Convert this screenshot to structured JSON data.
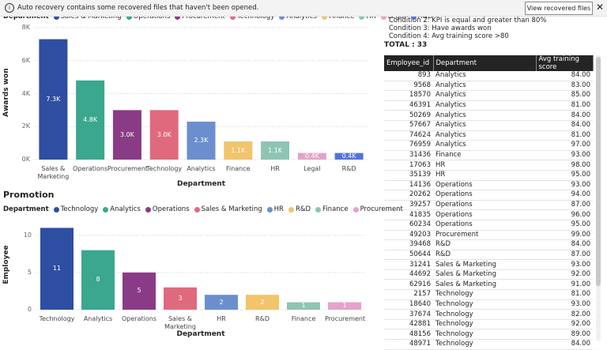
{
  "notification": {
    "message": "Auto recovery contains some recovered files that haven't been opened.",
    "button": "View recovered files"
  },
  "chart_data": [
    {
      "type": "bar",
      "legend_title": "Department",
      "y_label": "Awards won",
      "x_label": "Department",
      "categories": [
        "Sales & Marketing",
        "Operations",
        "Procurement",
        "Technology",
        "Analytics",
        "Finance",
        "HR",
        "Legal",
        "R&D"
      ],
      "values": [
        7300,
        4800,
        3000,
        3000,
        2300,
        1100,
        1100,
        400,
        400
      ],
      "value_labels": [
        "7.3K",
        "4.8K",
        "3.0K",
        "3.0K",
        "2.3K",
        "1.1K",
        "1.1K",
        "0.4K",
        "0.4K"
      ],
      "colors": [
        "#2e4ea2",
        "#3aa78e",
        "#8a3b86",
        "#df6a7e",
        "#6b8fce",
        "#f2c46b",
        "#8fc4b4",
        "#e6a2ca",
        "#5571df"
      ],
      "ylim": [
        0,
        8000
      ],
      "yticks": [
        {
          "value": 0,
          "label": "0K"
        },
        {
          "value": 2000,
          "label": "2K"
        },
        {
          "value": 4000,
          "label": "4K"
        },
        {
          "value": 6000,
          "label": "6K"
        },
        {
          "value": 8000,
          "label": "8K"
        }
      ],
      "grid": true
    },
    {
      "type": "bar",
      "title": "Promotion",
      "legend_title": "Department",
      "y_label": "Employee",
      "x_label": "Department",
      "categories": [
        "Technology",
        "Analytics",
        "Operations",
        "Sales & Marketing",
        "HR",
        "R&D",
        "Finance",
        "Procurement"
      ],
      "values": [
        11,
        8,
        5,
        3,
        2,
        2,
        1,
        1
      ],
      "colors": [
        "#2e4ea2",
        "#3aa78e",
        "#8a3b86",
        "#df6a7e",
        "#6b8fce",
        "#f2c46b",
        "#8fc4b4",
        "#e6a2ca"
      ],
      "ylim": [
        0,
        12
      ],
      "yticks": [
        0,
        5,
        10
      ],
      "grid": true
    }
  ],
  "conditions": [
    "Condition 2: KPI is equal and greater than 80%",
    "Condition 3: Have awards won",
    "Condition 4: Avg training score >80"
  ],
  "total": "TOTAL : 33",
  "table": {
    "header": [
      "Employee_id",
      "Department",
      "Avg training score"
    ],
    "rows": [
      [
        "893",
        "Analytics",
        "84.00"
      ],
      [
        "9568",
        "Analytics",
        "83.00"
      ],
      [
        "18570",
        "Analytics",
        "85.00"
      ],
      [
        "46391",
        "Analytics",
        "81.00"
      ],
      [
        "50269",
        "Analytics",
        "84.00"
      ],
      [
        "57667",
        "Analytics",
        "84.00"
      ],
      [
        "74624",
        "Analytics",
        "81.00"
      ],
      [
        "76959",
        "Analytics",
        "97.00"
      ],
      [
        "31436",
        "Finance",
        "93.00"
      ],
      [
        "17063",
        "HR",
        "98.00"
      ],
      [
        "35139",
        "HR",
        "95.00"
      ],
      [
        "14136",
        "Operations",
        "93.00"
      ],
      [
        "20262",
        "Operations",
        "94.00"
      ],
      [
        "39257",
        "Operations",
        "87.00"
      ],
      [
        "41835",
        "Operations",
        "96.00"
      ],
      [
        "60234",
        "Operations",
        "95.00"
      ],
      [
        "49203",
        "Procurement",
        "99.00"
      ],
      [
        "39468",
        "R&D",
        "84.00"
      ],
      [
        "50644",
        "R&D",
        "87.00"
      ],
      [
        "31241",
        "Sales & Marketing",
        "93.00"
      ],
      [
        "44692",
        "Sales & Marketing",
        "92.00"
      ],
      [
        "62916",
        "Sales & Marketing",
        "91.00"
      ],
      [
        "2157",
        "Technology",
        "81.00"
      ],
      [
        "18640",
        "Technology",
        "93.00"
      ],
      [
        "37674",
        "Technology",
        "82.00"
      ],
      [
        "42881",
        "Technology",
        "92.00"
      ],
      [
        "48156",
        "Technology",
        "89.00"
      ],
      [
        "48971",
        "Technology",
        "84.00"
      ]
    ]
  }
}
